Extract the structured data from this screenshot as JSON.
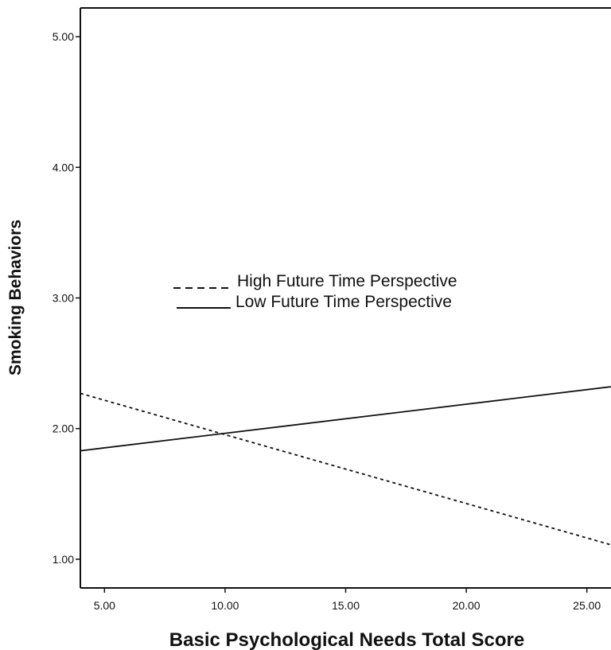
{
  "chart_data": {
    "type": "line",
    "title": "",
    "xlabel": "Basic Psychological Needs Total Score",
    "ylabel": "Smoking Behaviors",
    "xlim": [
      4.0,
      26.0
    ],
    "ylim": [
      0.78,
      5.22
    ],
    "x_ticks": [
      "5.00",
      "10.00",
      "15.00",
      "20.00",
      "25.00"
    ],
    "y_ticks": [
      "1.00",
      "2.00",
      "3.00",
      "4.00",
      "5.00"
    ],
    "grid": false,
    "legend_position": "center-left",
    "series": [
      {
        "name": "High Future Time Perspective",
        "style": "dashed",
        "color": "#111111",
        "x": [
          4.0,
          26.0
        ],
        "y": [
          2.27,
          1.11
        ]
      },
      {
        "name": "Low Future Time Perspective",
        "style": "solid",
        "color": "#111111",
        "x": [
          4.0,
          26.0
        ],
        "y": [
          1.83,
          2.32
        ]
      }
    ]
  }
}
